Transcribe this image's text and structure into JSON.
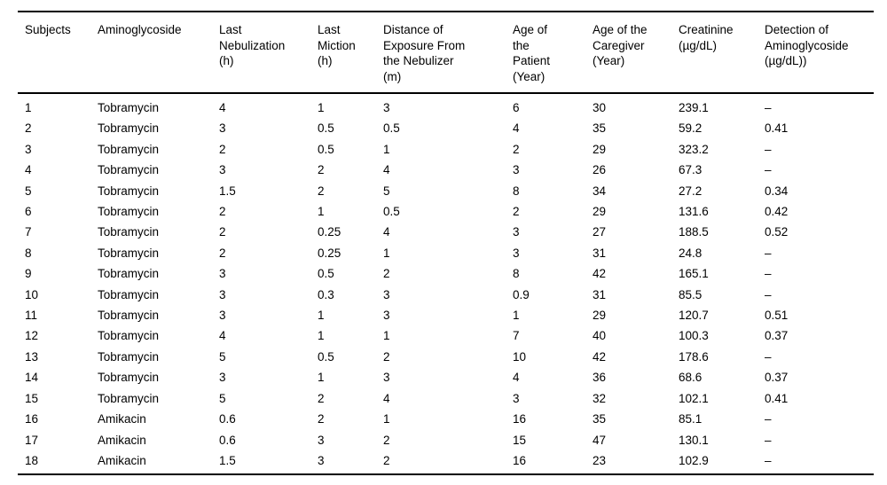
{
  "table": {
    "columns": [
      "Subjects",
      "Aminoglycoside",
      "Last\nNebulization\n(h)",
      "Last\nMiction\n(h)",
      "Distance of\nExposure From\nthe Nebulizer\n(m)",
      "Age of\nthe\nPatient\n(Year)",
      "Age of the\nCaregiver\n(Year)",
      "Creatinine\n(µg/dL)",
      "Detection of\nAminoglycoside\n(µg/dL))"
    ],
    "rows": [
      [
        "1",
        "Tobramycin",
        "4",
        "1",
        "3",
        "6",
        "30",
        "239.1",
        "–"
      ],
      [
        "2",
        "Tobramycin",
        "3",
        "0.5",
        "0.5",
        "4",
        "35",
        "59.2",
        "0.41"
      ],
      [
        "3",
        "Tobramycin",
        "2",
        "0.5",
        "1",
        "2",
        "29",
        "323.2",
        "–"
      ],
      [
        "4",
        "Tobramycin",
        "3",
        "2",
        "4",
        "3",
        "26",
        "67.3",
        "–"
      ],
      [
        "5",
        "Tobramycin",
        "1.5",
        "2",
        "5",
        "8",
        "34",
        "27.2",
        "0.34"
      ],
      [
        "6",
        "Tobramycin",
        "2",
        "1",
        "0.5",
        "2",
        "29",
        "131.6",
        "0.42"
      ],
      [
        "7",
        "Tobramycin",
        "2",
        "0.25",
        "4",
        "3",
        "27",
        "188.5",
        "0.52"
      ],
      [
        "8",
        "Tobramycin",
        "2",
        "0.25",
        "1",
        "3",
        "31",
        "24.8",
        "–"
      ],
      [
        "9",
        "Tobramycin",
        "3",
        "0.5",
        "2",
        "8",
        "42",
        "165.1",
        "–"
      ],
      [
        "10",
        "Tobramycin",
        "3",
        "0.3",
        "3",
        "0.9",
        "31",
        "85.5",
        "–"
      ],
      [
        "11",
        "Tobramycin",
        "3",
        "1",
        "3",
        "1",
        "29",
        "120.7",
        "0.51"
      ],
      [
        "12",
        "Tobramycin",
        "4",
        "1",
        "1",
        "7",
        "40",
        "100.3",
        "0.37"
      ],
      [
        "13",
        "Tobramycin",
        "5",
        "0.5",
        "2",
        "10",
        "42",
        "178.6",
        "–"
      ],
      [
        "14",
        "Tobramycin",
        "3",
        "1",
        "3",
        "4",
        "36",
        "68.6",
        "0.37"
      ],
      [
        "15",
        "Tobramycin",
        "5",
        "2",
        "4",
        "3",
        "32",
        "102.1",
        "0.41"
      ],
      [
        "16",
        "Amikacin",
        "0.6",
        "2",
        "1",
        "16",
        "35",
        "85.1",
        "–"
      ],
      [
        "17",
        "Amikacin",
        "0.6",
        "3",
        "2",
        "15",
        "47",
        "130.1",
        "–"
      ],
      [
        "18",
        "Amikacin",
        "1.5",
        "3",
        "2",
        "16",
        "23",
        "102.9",
        "–"
      ]
    ]
  }
}
